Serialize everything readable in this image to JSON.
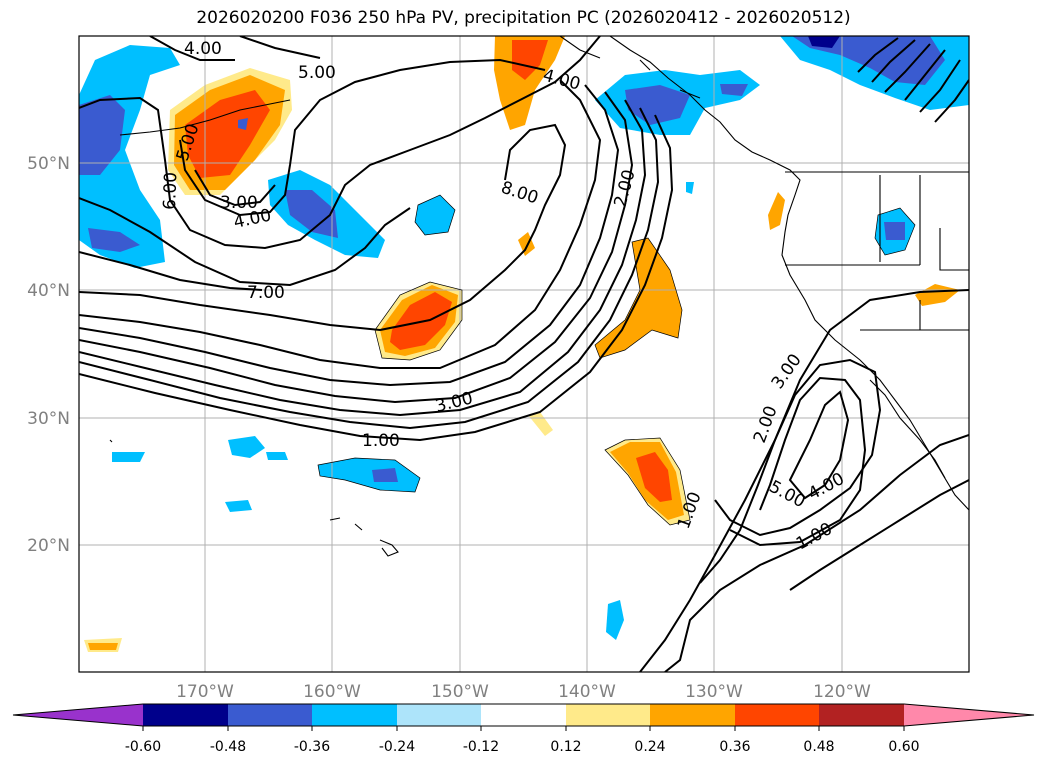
{
  "title": "2026020200 F036 250 hPa PV, precipitation PC (2026020412 - 2026020512)",
  "map": {
    "longitude_labels": [
      "170°W",
      "160°W",
      "150°W",
      "140°W",
      "130°W",
      "120°W"
    ],
    "latitude_labels": [
      "50°N",
      "40°N",
      "30°N",
      "20°N"
    ],
    "contour_labels": [
      {
        "text": "4.00"
      },
      {
        "text": "5.00"
      },
      {
        "text": "5.00"
      },
      {
        "text": "6.00"
      },
      {
        "text": "3.00"
      },
      {
        "text": "4.00"
      },
      {
        "text": "7.00"
      },
      {
        "text": "4.00"
      },
      {
        "text": "8.00"
      },
      {
        "text": "2.00"
      },
      {
        "text": "3.00"
      },
      {
        "text": "1.00"
      },
      {
        "text": "3.00"
      },
      {
        "text": "2.00"
      },
      {
        "text": "5.00"
      },
      {
        "text": "4.00"
      },
      {
        "text": "1.00"
      },
      {
        "text": "1.00"
      }
    ]
  },
  "colorbar": {
    "tick_labels": [
      "-0.60",
      "-0.48",
      "-0.36",
      "-0.24",
      "-0.12",
      "0.12",
      "0.24",
      "0.36",
      "0.48",
      "0.60"
    ],
    "colors": [
      "#9932cc",
      "#00008b",
      "#3a5bd0",
      "#00bfff",
      "#ade4fa",
      "#ffffff",
      "#ffea8a",
      "#ffa500",
      "#ff4500",
      "#b22222",
      "#ff88aa"
    ]
  }
}
